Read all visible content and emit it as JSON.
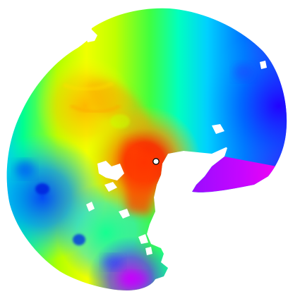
{
  "image": {
    "background": "#ffffff",
    "colormap": [
      "#ff0000",
      "#ff8000",
      "#ffff00",
      "#80ff00",
      "#00ff00",
      "#00ffff",
      "#0080ff",
      "#0000ff",
      "#ff00ff"
    ]
  },
  "markers": [
    {
      "name": "probe-marker",
      "fill": "#ffffff",
      "stroke": "#000000"
    }
  ]
}
